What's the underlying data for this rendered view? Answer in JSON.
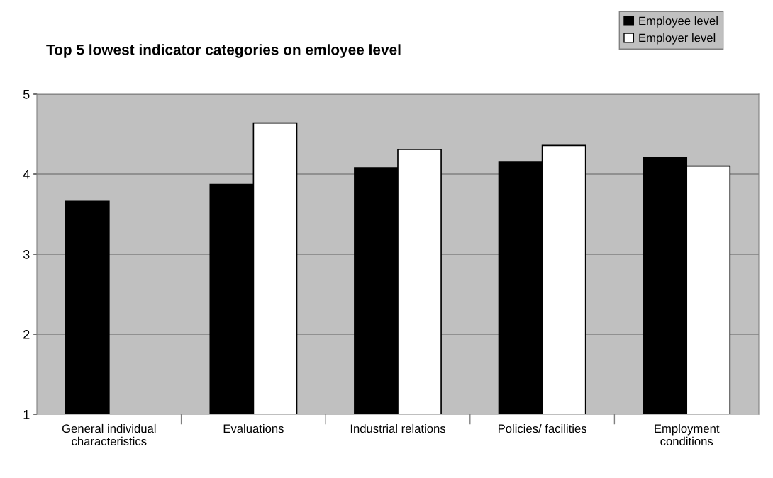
{
  "chart_data": {
    "type": "bar",
    "title": "Top 5 lowest indicator categories on emloyee level",
    "categories": [
      "General individual\ncharacteristics",
      "Evaluations",
      "Industrial relations",
      "Policies/ facilities",
      "Employment\nconditions"
    ],
    "series": [
      {
        "name": "Employee level",
        "color": "#000000",
        "values": [
          3.66,
          3.87,
          4.08,
          4.15,
          4.21
        ]
      },
      {
        "name": "Employer level",
        "color": "#ffffff",
        "values": [
          null,
          4.64,
          4.31,
          4.36,
          4.1
        ]
      }
    ],
    "ylim": [
      1,
      5
    ],
    "yticks": [
      1,
      2,
      3,
      4,
      5
    ],
    "grid": "y",
    "legend": "top right"
  }
}
